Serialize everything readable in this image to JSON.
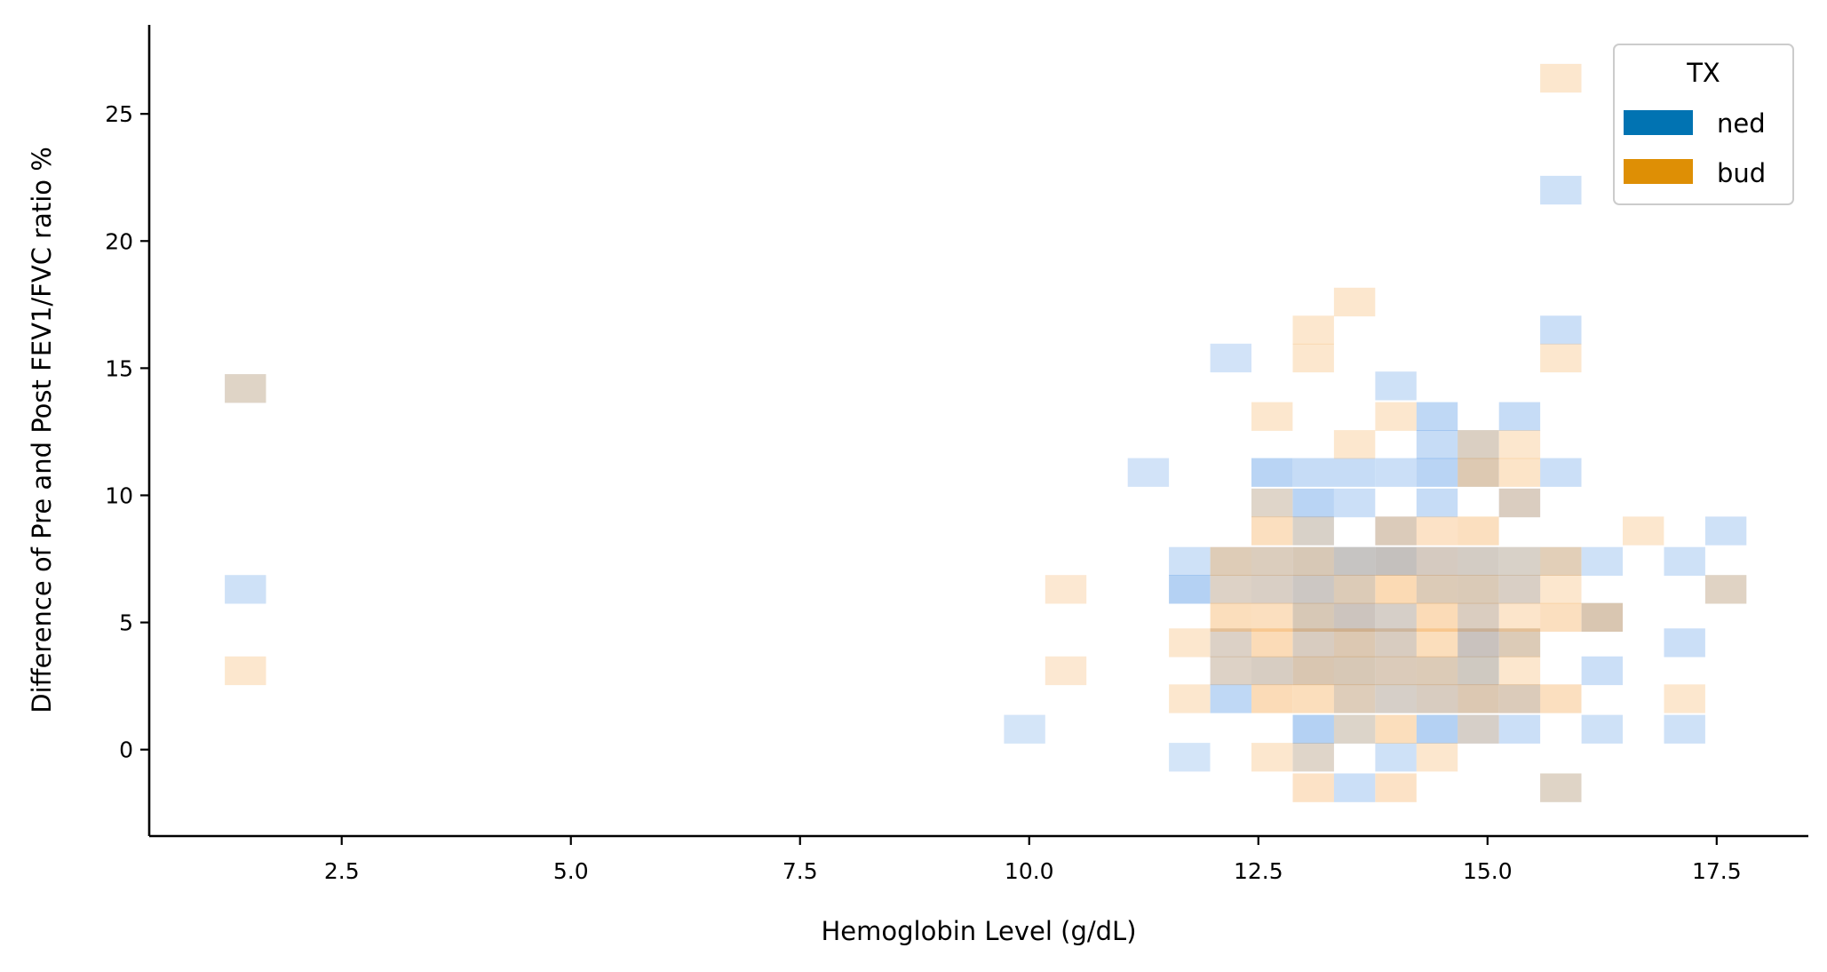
{
  "chart_data": {
    "type": "heatmap",
    "subtype": "2d-histogram",
    "title": "",
    "xlabel": "Hemoglobin Level (g/dL)",
    "ylabel": "Difference of Pre and Post FEV1/FVC ratio %",
    "xlim": [
      0.4,
      18.5
    ],
    "ylim": [
      -3.4,
      28.5
    ],
    "xticks": [
      2.5,
      5.0,
      7.5,
      10.0,
      12.5,
      15.0,
      17.5
    ],
    "xtick_labels": [
      "2.5",
      "5.0",
      "7.5",
      "10.0",
      "12.5",
      "15.0",
      "17.5"
    ],
    "yticks": [
      0,
      5,
      10,
      15,
      20,
      25
    ],
    "ytick_labels": [
      "0",
      "5",
      "10",
      "15",
      "20",
      "25"
    ],
    "bin_width_x": 0.45,
    "bin_height_y": 1.13,
    "legend": {
      "title": "TX",
      "position": "top-right",
      "entries": [
        {
          "label": "ned",
          "color": "#0173b2"
        },
        {
          "label": "bud",
          "color": "#de8f05"
        }
      ]
    },
    "series": [
      {
        "name": "ned",
        "color": "#4a90e2",
        "bins": [
          {
            "x": 1.45,
            "y": 6.3,
            "level": 0.45
          },
          {
            "x": 1.45,
            "y": 14.2,
            "level": 0.3
          },
          {
            "x": 9.95,
            "y": 0.8,
            "level": 0.35
          },
          {
            "x": 11.3,
            "y": 10.9,
            "level": 0.4
          },
          {
            "x": 11.75,
            "y": -0.3,
            "level": 0.35
          },
          {
            "x": 11.75,
            "y": 6.3,
            "level": 0.9
          },
          {
            "x": 11.75,
            "y": 7.4,
            "level": 0.45
          },
          {
            "x": 12.2,
            "y": 15.4,
            "level": 0.4
          },
          {
            "x": 12.2,
            "y": 2.0,
            "level": 0.7
          },
          {
            "x": 12.2,
            "y": 3.1,
            "level": 0.35
          },
          {
            "x": 12.2,
            "y": 4.2,
            "level": 0.4
          },
          {
            "x": 12.2,
            "y": 6.3,
            "level": 0.35
          },
          {
            "x": 12.2,
            "y": 7.4,
            "level": 0.4
          },
          {
            "x": 12.65,
            "y": 10.9,
            "level": 0.8
          },
          {
            "x": 12.65,
            "y": 9.7,
            "level": 0.3
          },
          {
            "x": 12.65,
            "y": 7.4,
            "level": 0.45
          },
          {
            "x": 12.65,
            "y": 6.3,
            "level": 0.45
          },
          {
            "x": 12.65,
            "y": 3.1,
            "level": 0.5
          },
          {
            "x": 13.1,
            "y": 10.9,
            "level": 0.6
          },
          {
            "x": 13.1,
            "y": 9.7,
            "level": 0.8
          },
          {
            "x": 13.1,
            "y": 8.6,
            "level": 0.45
          },
          {
            "x": 13.1,
            "y": 7.4,
            "level": 0.6
          },
          {
            "x": 13.1,
            "y": 6.3,
            "level": 0.75
          },
          {
            "x": 13.1,
            "y": 5.2,
            "level": 0.6
          },
          {
            "x": 13.1,
            "y": 4.2,
            "level": 0.5
          },
          {
            "x": 13.1,
            "y": 3.1,
            "level": 0.6
          },
          {
            "x": 13.1,
            "y": 0.8,
            "level": 0.9
          },
          {
            "x": 13.1,
            "y": -0.3,
            "level": 0.3
          },
          {
            "x": 13.55,
            "y": -1.5,
            "level": 0.5
          },
          {
            "x": 13.55,
            "y": 10.9,
            "level": 0.6
          },
          {
            "x": 13.55,
            "y": 9.7,
            "level": 0.5
          },
          {
            "x": 13.55,
            "y": 7.4,
            "level": 0.9
          },
          {
            "x": 13.55,
            "y": 6.3,
            "level": 0.45
          },
          {
            "x": 13.55,
            "y": 5.2,
            "level": 0.8
          },
          {
            "x": 13.55,
            "y": 4.2,
            "level": 0.5
          },
          {
            "x": 13.55,
            "y": 3.1,
            "level": 0.6
          },
          {
            "x": 13.55,
            "y": 2.0,
            "level": 0.4
          },
          {
            "x": 13.55,
            "y": 0.8,
            "level": 0.35
          },
          {
            "x": 14.0,
            "y": 14.3,
            "level": 0.45
          },
          {
            "x": 14.0,
            "y": 10.9,
            "level": 0.5
          },
          {
            "x": 14.0,
            "y": 8.6,
            "level": 0.45
          },
          {
            "x": 14.0,
            "y": 7.4,
            "level": 1.0
          },
          {
            "x": 14.0,
            "y": 5.2,
            "level": 0.5
          },
          {
            "x": 14.0,
            "y": 4.2,
            "level": 0.5
          },
          {
            "x": 14.0,
            "y": 3.1,
            "level": 0.45
          },
          {
            "x": 14.0,
            "y": 2.0,
            "level": 0.5
          },
          {
            "x": 14.0,
            "y": -0.3,
            "level": 0.45
          },
          {
            "x": 14.45,
            "y": 13.1,
            "level": 0.7
          },
          {
            "x": 14.45,
            "y": 12.0,
            "level": 0.6
          },
          {
            "x": 14.45,
            "y": 10.9,
            "level": 0.8
          },
          {
            "x": 14.45,
            "y": 9.7,
            "level": 0.6
          },
          {
            "x": 14.45,
            "y": 7.4,
            "level": 0.6
          },
          {
            "x": 14.45,
            "y": 6.3,
            "level": 0.45
          },
          {
            "x": 14.45,
            "y": 3.1,
            "level": 0.45
          },
          {
            "x": 14.45,
            "y": 2.0,
            "level": 0.5
          },
          {
            "x": 14.45,
            "y": 0.8,
            "level": 0.9
          },
          {
            "x": 14.9,
            "y": 12.0,
            "level": 0.45
          },
          {
            "x": 14.9,
            "y": 10.9,
            "level": 0.45
          },
          {
            "x": 14.9,
            "y": 7.4,
            "level": 0.6
          },
          {
            "x": 14.9,
            "y": 6.3,
            "level": 0.5
          },
          {
            "x": 14.9,
            "y": 5.2,
            "level": 0.45
          },
          {
            "x": 14.9,
            "y": 4.2,
            "level": 0.9
          },
          {
            "x": 14.9,
            "y": 3.1,
            "level": 0.7
          },
          {
            "x": 14.9,
            "y": 2.0,
            "level": 0.5
          },
          {
            "x": 14.9,
            "y": 0.8,
            "level": 0.5
          },
          {
            "x": 15.35,
            "y": 13.1,
            "level": 0.6
          },
          {
            "x": 15.35,
            "y": 9.7,
            "level": 0.45
          },
          {
            "x": 15.35,
            "y": 7.4,
            "level": 0.45
          },
          {
            "x": 15.35,
            "y": 6.3,
            "level": 0.45
          },
          {
            "x": 15.35,
            "y": 4.2,
            "level": 0.45
          },
          {
            "x": 15.35,
            "y": 2.0,
            "level": 0.45
          },
          {
            "x": 15.35,
            "y": 0.8,
            "level": 0.5
          },
          {
            "x": 15.8,
            "y": 22.0,
            "level": 0.45
          },
          {
            "x": 15.8,
            "y": 16.5,
            "level": 0.5
          },
          {
            "x": 15.8,
            "y": 10.9,
            "level": 0.5
          },
          {
            "x": 15.8,
            "y": 7.4,
            "level": 0.3
          },
          {
            "x": 15.8,
            "y": -1.5,
            "level": 0.3
          },
          {
            "x": 16.25,
            "y": 7.4,
            "level": 0.45
          },
          {
            "x": 16.25,
            "y": 5.2,
            "level": 0.6
          },
          {
            "x": 16.25,
            "y": 3.1,
            "level": 0.5
          },
          {
            "x": 16.25,
            "y": 0.8,
            "level": 0.45
          },
          {
            "x": 17.15,
            "y": 7.4,
            "level": 0.45
          },
          {
            "x": 17.15,
            "y": 4.2,
            "level": 0.5
          },
          {
            "x": 17.15,
            "y": 0.8,
            "level": 0.45
          },
          {
            "x": 17.6,
            "y": 8.6,
            "level": 0.45
          },
          {
            "x": 17.6,
            "y": 6.3,
            "level": 0.3
          }
        ]
      },
      {
        "name": "bud",
        "color": "#f5a54a",
        "bins": [
          {
            "x": 1.45,
            "y": 14.2,
            "level": 0.5
          },
          {
            "x": 1.45,
            "y": 3.1,
            "level": 0.45
          },
          {
            "x": 10.4,
            "y": 6.3,
            "level": 0.4
          },
          {
            "x": 10.4,
            "y": 3.1,
            "level": 0.4
          },
          {
            "x": 11.75,
            "y": 4.2,
            "level": 0.45
          },
          {
            "x": 11.75,
            "y": 2.0,
            "level": 0.45
          },
          {
            "x": 12.2,
            "y": 7.4,
            "level": 0.75
          },
          {
            "x": 12.2,
            "y": 6.3,
            "level": 0.5
          },
          {
            "x": 12.2,
            "y": 5.2,
            "level": 0.75
          },
          {
            "x": 12.2,
            "y": 4.2,
            "level": 0.5
          },
          {
            "x": 12.2,
            "y": 3.1,
            "level": 0.5
          },
          {
            "x": 12.65,
            "y": 13.1,
            "level": 0.45
          },
          {
            "x": 12.65,
            "y": 9.7,
            "level": 0.45
          },
          {
            "x": 12.65,
            "y": 8.6,
            "level": 0.7
          },
          {
            "x": 12.65,
            "y": 7.4,
            "level": 0.65
          },
          {
            "x": 12.65,
            "y": 6.3,
            "level": 0.5
          },
          {
            "x": 12.65,
            "y": 5.2,
            "level": 0.7
          },
          {
            "x": 12.65,
            "y": 4.2,
            "level": 0.85
          },
          {
            "x": 12.65,
            "y": 3.1,
            "level": 0.55
          },
          {
            "x": 12.65,
            "y": 2.0,
            "level": 0.85
          },
          {
            "x": 12.65,
            "y": -0.3,
            "level": 0.45
          },
          {
            "x": 13.1,
            "y": 16.5,
            "level": 0.45
          },
          {
            "x": 13.1,
            "y": 15.4,
            "level": 0.45
          },
          {
            "x": 13.1,
            "y": 8.6,
            "level": 0.45
          },
          {
            "x": 13.1,
            "y": 7.4,
            "level": 0.75
          },
          {
            "x": 13.1,
            "y": 6.3,
            "level": 0.5
          },
          {
            "x": 13.1,
            "y": 5.2,
            "level": 0.75
          },
          {
            "x": 13.1,
            "y": 4.2,
            "level": 0.6
          },
          {
            "x": 13.1,
            "y": 3.1,
            "level": 0.85
          },
          {
            "x": 13.1,
            "y": 2.0,
            "level": 0.75
          },
          {
            "x": 13.1,
            "y": -0.3,
            "level": 0.45
          },
          {
            "x": 13.1,
            "y": -1.5,
            "level": 0.6
          },
          {
            "x": 13.55,
            "y": 17.6,
            "level": 0.45
          },
          {
            "x": 13.55,
            "y": 12.0,
            "level": 0.45
          },
          {
            "x": 13.55,
            "y": 7.4,
            "level": 0.5
          },
          {
            "x": 13.55,
            "y": 6.3,
            "level": 0.75
          },
          {
            "x": 13.55,
            "y": 5.2,
            "level": 0.6
          },
          {
            "x": 13.55,
            "y": 4.2,
            "level": 0.85
          },
          {
            "x": 13.55,
            "y": 3.1,
            "level": 0.75
          },
          {
            "x": 13.55,
            "y": 2.0,
            "level": 0.7
          },
          {
            "x": 13.55,
            "y": 0.8,
            "level": 0.45
          },
          {
            "x": 14.0,
            "y": 13.1,
            "level": 0.45
          },
          {
            "x": 14.0,
            "y": 8.6,
            "level": 0.7
          },
          {
            "x": 14.0,
            "y": 7.4,
            "level": 0.6
          },
          {
            "x": 14.0,
            "y": 6.3,
            "level": 0.9
          },
          {
            "x": 14.0,
            "y": 5.2,
            "level": 0.45
          },
          {
            "x": 14.0,
            "y": 4.2,
            "level": 0.6
          },
          {
            "x": 14.0,
            "y": 3.1,
            "level": 0.7
          },
          {
            "x": 14.0,
            "y": 2.0,
            "level": 0.45
          },
          {
            "x": 14.0,
            "y": 0.8,
            "level": 0.75
          },
          {
            "x": 14.0,
            "y": -1.5,
            "level": 0.6
          },
          {
            "x": 14.45,
            "y": 8.6,
            "level": 0.6
          },
          {
            "x": 14.45,
            "y": 7.4,
            "level": 0.6
          },
          {
            "x": 14.45,
            "y": 6.3,
            "level": 0.75
          },
          {
            "x": 14.45,
            "y": 5.2,
            "level": 0.85
          },
          {
            "x": 14.45,
            "y": 4.2,
            "level": 0.75
          },
          {
            "x": 14.45,
            "y": 3.1,
            "level": 0.75
          },
          {
            "x": 14.45,
            "y": 2.0,
            "level": 0.6
          },
          {
            "x": 14.45,
            "y": -0.3,
            "level": 0.45
          },
          {
            "x": 14.9,
            "y": 12.0,
            "level": 0.55
          },
          {
            "x": 14.9,
            "y": 10.9,
            "level": 0.85
          },
          {
            "x": 14.9,
            "y": 8.6,
            "level": 0.7
          },
          {
            "x": 14.9,
            "y": 7.4,
            "level": 0.5
          },
          {
            "x": 14.9,
            "y": 6.3,
            "level": 0.75
          },
          {
            "x": 14.9,
            "y": 5.2,
            "level": 0.6
          },
          {
            "x": 14.9,
            "y": 4.2,
            "level": 0.6
          },
          {
            "x": 14.9,
            "y": 3.1,
            "level": 0.55
          },
          {
            "x": 14.9,
            "y": 2.0,
            "level": 0.85
          },
          {
            "x": 14.9,
            "y": 0.8,
            "level": 0.45
          },
          {
            "x": 15.35,
            "y": 12.0,
            "level": 0.45
          },
          {
            "x": 15.35,
            "y": 10.9,
            "level": 0.55
          },
          {
            "x": 15.35,
            "y": 9.7,
            "level": 0.6
          },
          {
            "x": 15.35,
            "y": 7.4,
            "level": 0.45
          },
          {
            "x": 15.35,
            "y": 6.3,
            "level": 0.5
          },
          {
            "x": 15.35,
            "y": 5.2,
            "level": 0.5
          },
          {
            "x": 15.35,
            "y": 4.2,
            "level": 0.75
          },
          {
            "x": 15.35,
            "y": 3.1,
            "level": 0.45
          },
          {
            "x": 15.35,
            "y": 2.0,
            "level": 0.7
          },
          {
            "x": 15.8,
            "y": 26.4,
            "level": 0.45
          },
          {
            "x": 15.8,
            "y": 15.4,
            "level": 0.45
          },
          {
            "x": 15.8,
            "y": 7.4,
            "level": 0.75
          },
          {
            "x": 15.8,
            "y": 6.3,
            "level": 0.45
          },
          {
            "x": 15.8,
            "y": 5.2,
            "level": 0.7
          },
          {
            "x": 15.8,
            "y": 2.0,
            "level": 0.7
          },
          {
            "x": 15.8,
            "y": -1.5,
            "level": 0.5
          },
          {
            "x": 16.25,
            "y": 5.2,
            "level": 0.85
          },
          {
            "x": 16.7,
            "y": 8.6,
            "level": 0.45
          },
          {
            "x": 17.15,
            "y": 2.0,
            "level": 0.45
          },
          {
            "x": 17.6,
            "y": 6.3,
            "level": 0.55
          }
        ]
      }
    ]
  }
}
